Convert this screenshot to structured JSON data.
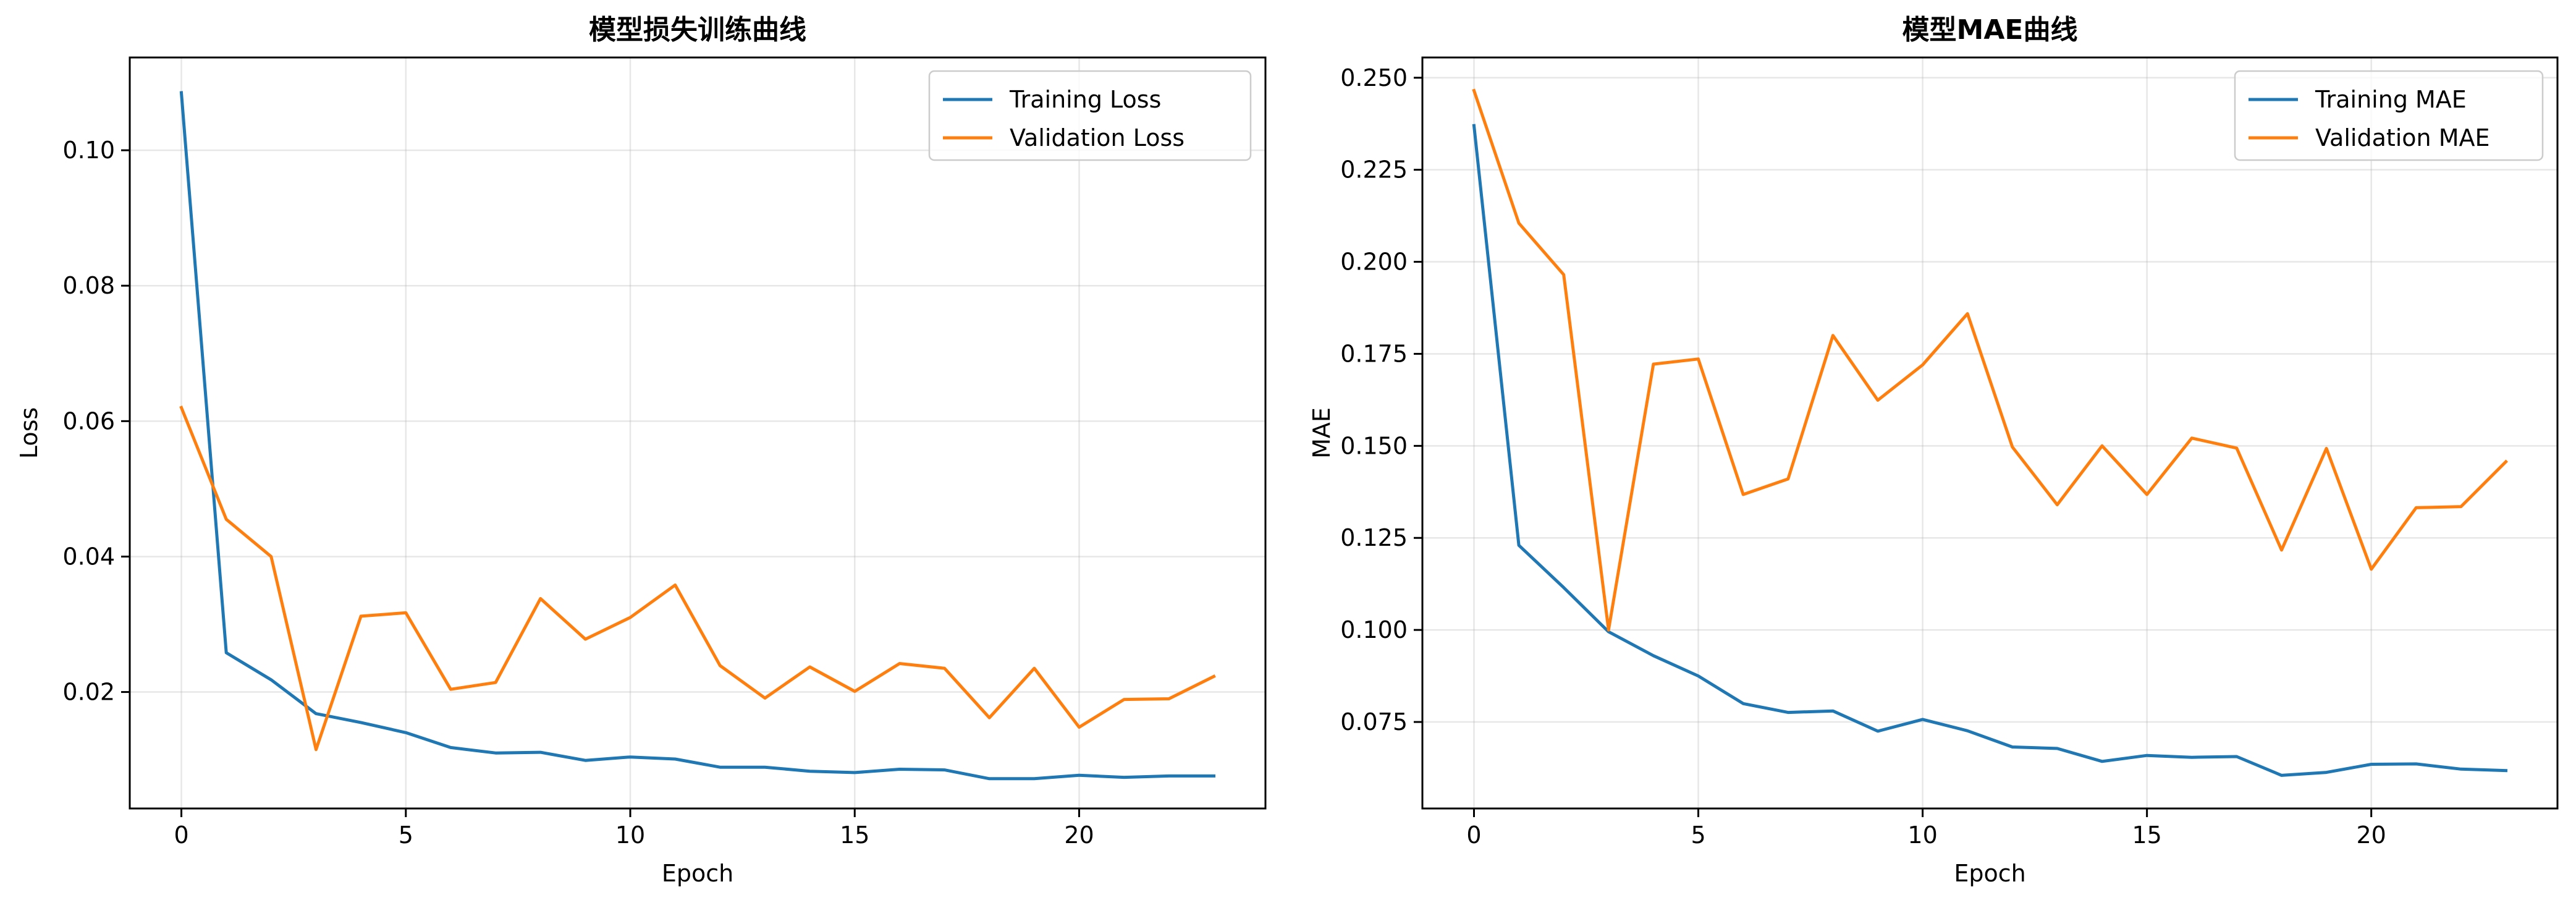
{
  "chart_data": [
    {
      "type": "line",
      "title": "模型损失训练曲线",
      "xlabel": "Epoch",
      "ylabel": "Loss",
      "xlim": [
        -1.15,
        24.15
      ],
      "ylim": [
        0.0028,
        0.1137
      ],
      "xticks": [
        0,
        5,
        10,
        15,
        20
      ],
      "yticks": [
        0.02,
        0.04,
        0.06,
        0.08,
        0.1
      ],
      "ytick_labels": [
        "0.02",
        "0.04",
        "0.06",
        "0.08",
        "0.10"
      ],
      "grid": true,
      "legend_position": "top-right",
      "x": [
        0,
        1,
        2,
        3,
        4,
        5,
        6,
        7,
        8,
        9,
        10,
        11,
        12,
        13,
        14,
        15,
        16,
        17,
        18,
        19,
        20,
        21,
        22,
        23
      ],
      "series": [
        {
          "name": "Training Loss",
          "color": "#1f77b4",
          "values": [
            0.1085,
            0.0258,
            0.0218,
            0.0168,
            0.0155,
            0.014,
            0.0118,
            0.011,
            0.0111,
            0.0099,
            0.0104,
            0.0101,
            0.0089,
            0.0089,
            0.0083,
            0.0081,
            0.0086,
            0.0085,
            0.0072,
            0.0072,
            0.0077,
            0.0074,
            0.0076,
            0.0076
          ]
        },
        {
          "name": "Validation Loss",
          "color": "#ff7f0e",
          "values": [
            0.062,
            0.0455,
            0.04,
            0.0115,
            0.0312,
            0.0317,
            0.0204,
            0.0214,
            0.0338,
            0.0278,
            0.031,
            0.0358,
            0.0239,
            0.0191,
            0.0237,
            0.0201,
            0.0242,
            0.0235,
            0.0162,
            0.0235,
            0.0148,
            0.0189,
            0.019,
            0.0223
          ]
        }
      ]
    },
    {
      "type": "line",
      "title": "模型MAE曲线",
      "xlabel": "Epoch",
      "ylabel": "MAE",
      "xlim": [
        -1.15,
        24.15
      ],
      "ylim": [
        0.0515,
        0.2555
      ],
      "xticks": [
        0,
        5,
        10,
        15,
        20
      ],
      "yticks": [
        0.075,
        0.1,
        0.125,
        0.15,
        0.175,
        0.2,
        0.225,
        0.25
      ],
      "ytick_labels": [
        "0.075",
        "0.100",
        "0.125",
        "0.150",
        "0.175",
        "0.200",
        "0.225",
        "0.250"
      ],
      "grid": true,
      "legend_position": "top-right",
      "x": [
        0,
        1,
        2,
        3,
        4,
        5,
        6,
        7,
        8,
        9,
        10,
        11,
        12,
        13,
        14,
        15,
        16,
        17,
        18,
        19,
        20,
        21,
        22,
        23
      ],
      "series": [
        {
          "name": "Training MAE",
          "color": "#1f77b4",
          "values": [
            0.237,
            0.123,
            0.1115,
            0.0995,
            0.093,
            0.0875,
            0.08,
            0.0776,
            0.078,
            0.0725,
            0.0757,
            0.0726,
            0.0682,
            0.0678,
            0.0643,
            0.0659,
            0.0654,
            0.0656,
            0.0605,
            0.0613,
            0.0635,
            0.0636,
            0.0622,
            0.0618
          ]
        },
        {
          "name": "Validation MAE",
          "color": "#ff7f0e",
          "values": [
            0.2465,
            0.2105,
            0.1965,
            0.1,
            0.1722,
            0.1736,
            0.1368,
            0.141,
            0.18,
            0.1624,
            0.172,
            0.1859,
            0.1497,
            0.134,
            0.15,
            0.1368,
            0.1521,
            0.1494,
            0.1217,
            0.1493,
            0.1165,
            0.1332,
            0.1335,
            0.1457
          ]
        }
      ]
    }
  ]
}
